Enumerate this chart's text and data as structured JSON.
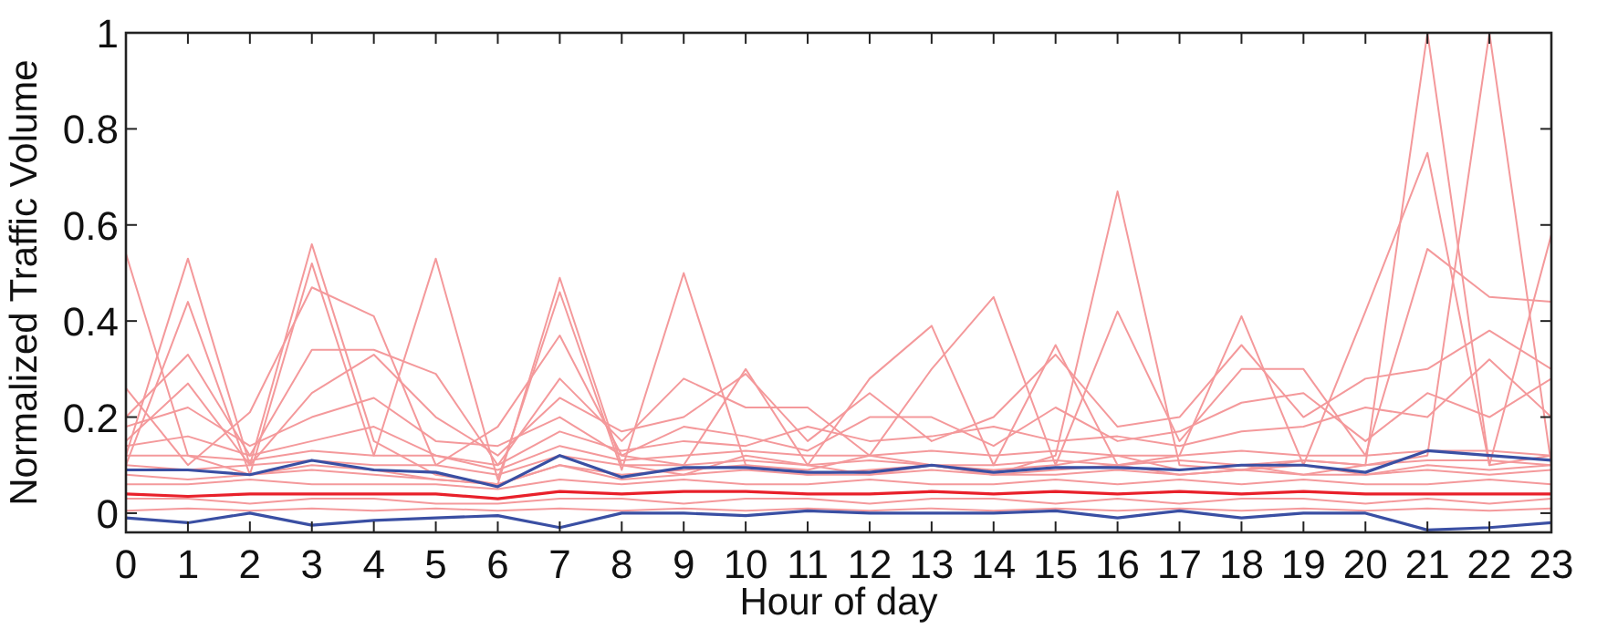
{
  "chart_data": {
    "type": "line",
    "xlabel": "Hour of day",
    "ylabel": "Normalized Traffic Volume",
    "x": [
      0,
      1,
      2,
      3,
      4,
      5,
      6,
      7,
      8,
      9,
      10,
      11,
      12,
      13,
      14,
      15,
      16,
      17,
      18,
      19,
      20,
      21,
      22,
      23
    ],
    "xlim": [
      0,
      23
    ],
    "xticks": [
      0,
      1,
      2,
      3,
      4,
      5,
      6,
      7,
      8,
      9,
      10,
      11,
      12,
      13,
      14,
      15,
      16,
      17,
      18,
      19,
      20,
      21,
      22,
      23
    ],
    "ylim": [
      -0.04,
      1
    ],
    "yticks": [
      0,
      0.2,
      0.4,
      0.6,
      0.8,
      1
    ],
    "grid": false,
    "marker": "none",
    "line_style": "solid",
    "series": [
      {
        "color": "#f4999b",
        "values": [
          0.54,
          0.12,
          0.08,
          0.1,
          0.09,
          0.07,
          0.06,
          0.1,
          0.08,
          0.09,
          0.1,
          0.08,
          0.09,
          0.1,
          0.08,
          0.09,
          0.1,
          0.08,
          0.09,
          0.1,
          0.08,
          0.1,
          0.09,
          0.1
        ]
      },
      {
        "color": "#f4999b",
        "values": [
          0.12,
          0.53,
          0.1,
          0.56,
          0.15,
          0.08,
          0.06,
          0.49,
          0.1,
          0.08,
          0.12,
          0.1,
          0.08,
          0.1,
          0.09,
          0.1,
          0.12,
          0.09,
          0.1,
          0.08,
          0.1,
          1.0,
          0.1,
          0.12
        ]
      },
      {
        "color": "#f4999b",
        "values": [
          0.1,
          0.44,
          0.08,
          0.52,
          0.12,
          0.53,
          0.07,
          0.46,
          0.09,
          0.5,
          0.1,
          0.09,
          0.12,
          0.1,
          0.08,
          0.12,
          0.67,
          0.1,
          0.09,
          0.11,
          0.1,
          0.12,
          1.0,
          0.1
        ]
      },
      {
        "color": "#f4999b",
        "values": [
          0.26,
          0.1,
          0.21,
          0.47,
          0.41,
          0.1,
          0.18,
          0.37,
          0.12,
          0.1,
          0.3,
          0.1,
          0.28,
          0.39,
          0.1,
          0.35,
          0.1,
          0.12,
          0.41,
          0.1,
          0.42,
          0.75,
          0.1,
          0.58
        ]
      },
      {
        "color": "#f4999b",
        "values": [
          0.2,
          0.33,
          0.12,
          0.34,
          0.34,
          0.29,
          0.1,
          0.28,
          0.15,
          0.28,
          0.22,
          0.22,
          0.12,
          0.3,
          0.45,
          0.1,
          0.42,
          0.15,
          0.3,
          0.3,
          0.12,
          0.55,
          0.45,
          0.44
        ]
      },
      {
        "color": "#f4999b",
        "values": [
          0.15,
          0.27,
          0.1,
          0.25,
          0.33,
          0.2,
          0.12,
          0.24,
          0.17,
          0.2,
          0.29,
          0.15,
          0.25,
          0.15,
          0.2,
          0.33,
          0.18,
          0.2,
          0.35,
          0.2,
          0.28,
          0.3,
          0.38,
          0.3
        ]
      },
      {
        "color": "#f4999b",
        "values": [
          0.18,
          0.22,
          0.14,
          0.2,
          0.24,
          0.15,
          0.14,
          0.2,
          0.12,
          0.18,
          0.16,
          0.13,
          0.2,
          0.2,
          0.14,
          0.22,
          0.15,
          0.17,
          0.23,
          0.25,
          0.15,
          0.25,
          0.2,
          0.28
        ]
      },
      {
        "color": "#f4999b",
        "values": [
          0.14,
          0.16,
          0.12,
          0.15,
          0.18,
          0.12,
          0.1,
          0.17,
          0.13,
          0.15,
          0.14,
          0.18,
          0.15,
          0.16,
          0.18,
          0.15,
          0.16,
          0.14,
          0.17,
          0.18,
          0.22,
          0.2,
          0.32,
          0.2
        ]
      },
      {
        "color": "#f4999b",
        "values": [
          0.12,
          0.12,
          0.11,
          0.13,
          0.12,
          0.12,
          0.09,
          0.14,
          0.11,
          0.12,
          0.13,
          0.12,
          0.12,
          0.13,
          0.12,
          0.13,
          0.12,
          0.12,
          0.13,
          0.12,
          0.12,
          0.13,
          0.13,
          0.12
        ]
      },
      {
        "color": "#f4999b",
        "values": [
          0.1,
          0.09,
          0.1,
          0.11,
          0.1,
          0.1,
          0.08,
          0.12,
          0.1,
          0.1,
          0.11,
          0.1,
          0.11,
          0.1,
          0.1,
          0.11,
          0.1,
          0.11,
          0.1,
          0.11,
          0.1,
          0.11,
          0.11,
          0.1
        ]
      },
      {
        "color": "#f4999b",
        "values": [
          0.08,
          0.07,
          0.08,
          0.09,
          0.08,
          0.07,
          0.06,
          0.1,
          0.07,
          0.08,
          0.09,
          0.08,
          0.08,
          0.09,
          0.08,
          0.08,
          0.09,
          0.08,
          0.09,
          0.08,
          0.08,
          0.09,
          0.08,
          0.09
        ]
      },
      {
        "color": "#f4999b",
        "values": [
          0.06,
          0.06,
          0.07,
          0.06,
          0.06,
          0.06,
          0.05,
          0.07,
          0.06,
          0.07,
          0.06,
          0.06,
          0.07,
          0.06,
          0.06,
          0.07,
          0.06,
          0.07,
          0.06,
          0.07,
          0.06,
          0.06,
          0.07,
          0.06
        ]
      },
      {
        "color": "#f4999b",
        "values": [
          0.03,
          0.03,
          0.02,
          0.03,
          0.03,
          0.02,
          0.02,
          0.03,
          0.03,
          0.02,
          0.03,
          0.03,
          0.02,
          0.03,
          0.03,
          0.02,
          0.03,
          0.02,
          0.03,
          0.03,
          0.02,
          0.03,
          0.02,
          0.03
        ]
      },
      {
        "color": "#f4999b",
        "values": [
          0.005,
          0.01,
          0.005,
          0.01,
          0.005,
          0.01,
          0.005,
          0.01,
          0.005,
          0.01,
          0.005,
          0.01,
          0.005,
          0.01,
          0.005,
          0.01,
          0.005,
          0.01,
          0.005,
          0.01,
          0.005,
          0.01,
          0.005,
          0.01
        ]
      },
      {
        "color": "#e8202a",
        "values": [
          0.04,
          0.035,
          0.04,
          0.04,
          0.04,
          0.04,
          0.03,
          0.045,
          0.04,
          0.045,
          0.045,
          0.04,
          0.04,
          0.045,
          0.04,
          0.045,
          0.04,
          0.045,
          0.04,
          0.045,
          0.04,
          0.04,
          0.04,
          0.04
        ]
      },
      {
        "color": "#3a4fa3",
        "values": [
          0.09,
          0.09,
          0.08,
          0.11,
          0.09,
          0.085,
          0.055,
          0.12,
          0.075,
          0.095,
          0.095,
          0.085,
          0.085,
          0.1,
          0.085,
          0.095,
          0.095,
          0.09,
          0.1,
          0.1,
          0.085,
          0.13,
          0.12,
          0.11
        ]
      },
      {
        "color": "#3a4fa3",
        "values": [
          -0.01,
          -0.02,
          0,
          -0.025,
          -0.015,
          -0.01,
          -0.005,
          -0.03,
          0,
          0,
          -0.005,
          0.005,
          0,
          0,
          0,
          0.005,
          -0.01,
          0.005,
          -0.01,
          0,
          0,
          -0.035,
          -0.03,
          -0.02
        ]
      }
    ]
  }
}
